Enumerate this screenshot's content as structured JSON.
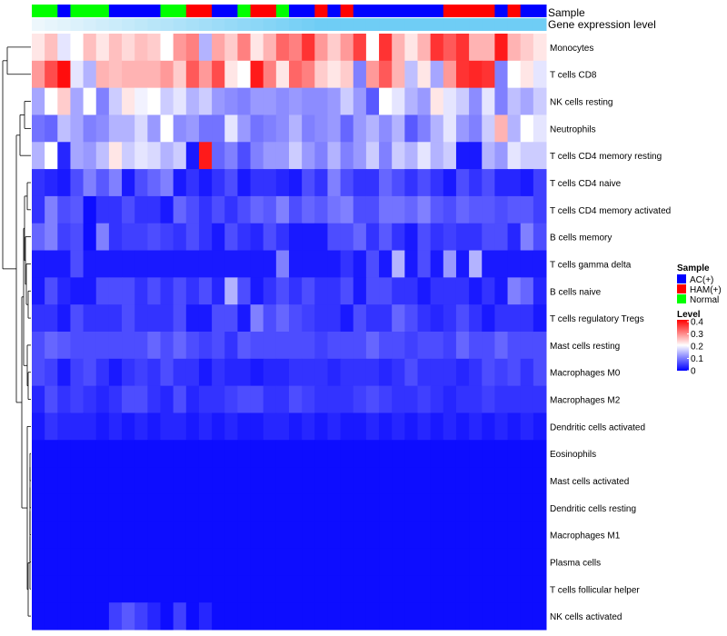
{
  "chart_data": {
    "type": "heatmap",
    "title": "",
    "annotation_labels": {
      "sample": "Sample",
      "expression": "Gene expression level"
    },
    "rows": [
      "Monocytes",
      "T cells CD8",
      "NK cells resting",
      "Neutrophils",
      "T cells CD4 memory resting",
      "T cells CD4 naive",
      "T cells CD4 memory activated",
      "B cells memory",
      "T cells gamma delta",
      "B cells naive",
      "T cells regulatory  Tregs",
      "Mast cells resting",
      "Macrophages M0",
      "Macrophages M2",
      "Dendritic cells activated",
      "Eosinophils",
      "Mast cells activated",
      "Dendritic cells resting",
      "Macrophages M1",
      "Plasma cells",
      "T cells follicular helper",
      "NK cells activated"
    ],
    "sample_groups": [
      "Normal",
      "Normal",
      "AC(+)",
      "Normal",
      "Normal",
      "Normal",
      "AC(+)",
      "AC(+)",
      "AC(+)",
      "AC(+)",
      "Normal",
      "Normal",
      "HAM(+)",
      "HAM(+)",
      "AC(+)",
      "AC(+)",
      "Normal",
      "HAM(+)",
      "HAM(+)",
      "Normal",
      "AC(+)",
      "AC(+)",
      "HAM(+)",
      "AC(+)",
      "HAM(+)",
      "AC(+)",
      "AC(+)",
      "AC(+)",
      "AC(+)",
      "AC(+)",
      "AC(+)",
      "AC(+)",
      "HAM(+)",
      "HAM(+)",
      "HAM(+)",
      "HAM(+)",
      "AC(+)",
      "HAM(+)",
      "AC(+)",
      "AC(+)"
    ],
    "values": [
      [
        0.22,
        0.25,
        0.18,
        0.2,
        0.25,
        0.22,
        0.25,
        0.23,
        0.25,
        0.24,
        0.2,
        0.28,
        0.3,
        0.14,
        0.27,
        0.24,
        0.3,
        0.22,
        0.26,
        0.32,
        0.3,
        0.36,
        0.28,
        0.24,
        0.28,
        0.35,
        0.2,
        0.36,
        0.26,
        0.22,
        0.26,
        0.36,
        0.33,
        0.36,
        0.26,
        0.26,
        0.38,
        0.26,
        0.24,
        0.22
      ],
      [
        0.28,
        0.34,
        0.39,
        0.18,
        0.14,
        0.26,
        0.25,
        0.26,
        0.26,
        0.26,
        0.28,
        0.24,
        0.33,
        0.28,
        0.34,
        0.22,
        0.2,
        0.38,
        0.3,
        0.22,
        0.32,
        0.3,
        0.24,
        0.22,
        0.24,
        0.1,
        0.28,
        0.33,
        0.26,
        0.15,
        0.22,
        0.13,
        0.28,
        0.36,
        0.37,
        0.36,
        0.1,
        0.2,
        0.22,
        0.18
      ],
      [
        0.13,
        0.2,
        0.24,
        0.13,
        0.2,
        0.1,
        0.16,
        0.22,
        0.19,
        0.2,
        0.16,
        0.18,
        0.14,
        0.16,
        0.12,
        0.11,
        0.1,
        0.12,
        0.12,
        0.11,
        0.12,
        0.11,
        0.11,
        0.12,
        0.16,
        0.12,
        0.07,
        0.2,
        0.18,
        0.14,
        0.12,
        0.22,
        0.18,
        0.16,
        0.11,
        0.18,
        0.1,
        0.15,
        0.13,
        0.16
      ],
      [
        0.09,
        0.08,
        0.15,
        0.13,
        0.1,
        0.11,
        0.14,
        0.14,
        0.17,
        0.12,
        0.2,
        0.11,
        0.12,
        0.09,
        0.09,
        0.18,
        0.12,
        0.09,
        0.1,
        0.11,
        0.14,
        0.1,
        0.11,
        0.12,
        0.08,
        0.12,
        0.14,
        0.11,
        0.14,
        0.07,
        0.1,
        0.14,
        0.18,
        0.12,
        0.1,
        0.16,
        0.26,
        0.14,
        0.2,
        0.18
      ],
      [
        0.14,
        0.2,
        0.03,
        0.13,
        0.12,
        0.15,
        0.22,
        0.16,
        0.18,
        0.17,
        0.14,
        0.16,
        0.02,
        0.38,
        0.08,
        0.1,
        0.06,
        0.1,
        0.12,
        0.12,
        0.16,
        0.12,
        0.1,
        0.14,
        0.1,
        0.12,
        0.16,
        0.1,
        0.16,
        0.14,
        0.18,
        0.14,
        0.16,
        0.02,
        0.02,
        0.14,
        0.12,
        0.18,
        0.16,
        0.16
      ],
      [
        0.04,
        0.03,
        0.02,
        0.06,
        0.1,
        0.07,
        0.1,
        0.02,
        0.06,
        0.08,
        0.1,
        0.02,
        0.04,
        0.02,
        0.04,
        0.06,
        0.02,
        0.04,
        0.04,
        0.03,
        0.02,
        0.06,
        0.04,
        0.1,
        0.06,
        0.04,
        0.04,
        0.08,
        0.06,
        0.04,
        0.06,
        0.04,
        0.02,
        0.06,
        0.04,
        0.06,
        0.03,
        0.03,
        0.02,
        0.05
      ],
      [
        0.04,
        0.1,
        0.06,
        0.07,
        0.01,
        0.04,
        0.04,
        0.06,
        0.04,
        0.04,
        0.02,
        0.08,
        0.06,
        0.04,
        0.06,
        0.04,
        0.06,
        0.08,
        0.07,
        0.1,
        0.06,
        0.08,
        0.07,
        0.09,
        0.1,
        0.06,
        0.06,
        0.09,
        0.09,
        0.08,
        0.1,
        0.07,
        0.06,
        0.08,
        0.07,
        0.07,
        0.06,
        0.07,
        0.07,
        0.05
      ],
      [
        0.08,
        0.1,
        0.05,
        0.06,
        0.01,
        0.1,
        0.04,
        0.05,
        0.05,
        0.06,
        0.05,
        0.04,
        0.06,
        0.04,
        0.02,
        0.06,
        0.04,
        0.03,
        0.06,
        0.04,
        0.02,
        0.02,
        0.02,
        0.06,
        0.06,
        0.08,
        0.04,
        0.07,
        0.04,
        0.02,
        0.06,
        0.04,
        0.05,
        0.04,
        0.04,
        0.06,
        0.06,
        0.03,
        0.1,
        0.06
      ],
      [
        0.02,
        0.02,
        0.02,
        0.06,
        0.02,
        0.02,
        0.02,
        0.02,
        0.02,
        0.02,
        0.02,
        0.02,
        0.02,
        0.02,
        0.02,
        0.02,
        0.02,
        0.02,
        0.02,
        0.1,
        0.02,
        0.02,
        0.02,
        0.02,
        0.04,
        0.02,
        0.06,
        0.02,
        0.14,
        0.02,
        0.06,
        0.02,
        0.12,
        0.02,
        0.14,
        0.02,
        0.02,
        0.02,
        0.02,
        0.02
      ],
      [
        0.02,
        0.06,
        0.03,
        0.02,
        0.02,
        0.06,
        0.06,
        0.06,
        0.04,
        0.06,
        0.04,
        0.06,
        0.04,
        0.06,
        0.03,
        0.14,
        0.06,
        0.02,
        0.04,
        0.06,
        0.04,
        0.06,
        0.04,
        0.04,
        0.06,
        0.02,
        0.06,
        0.06,
        0.04,
        0.04,
        0.02,
        0.04,
        0.04,
        0.04,
        0.02,
        0.04,
        0.02,
        0.1,
        0.08,
        0.03
      ],
      [
        0.04,
        0.04,
        0.02,
        0.06,
        0.04,
        0.04,
        0.04,
        0.06,
        0.04,
        0.04,
        0.04,
        0.06,
        0.02,
        0.02,
        0.06,
        0.06,
        0.02,
        0.1,
        0.06,
        0.08,
        0.06,
        0.05,
        0.04,
        0.04,
        0.02,
        0.06,
        0.04,
        0.04,
        0.08,
        0.06,
        0.04,
        0.03,
        0.04,
        0.06,
        0.04,
        0.02,
        0.04,
        0.04,
        0.04,
        0.02
      ],
      [
        0.06,
        0.08,
        0.07,
        0.06,
        0.06,
        0.06,
        0.06,
        0.06,
        0.06,
        0.08,
        0.06,
        0.08,
        0.06,
        0.05,
        0.06,
        0.04,
        0.07,
        0.06,
        0.06,
        0.06,
        0.06,
        0.06,
        0.05,
        0.06,
        0.06,
        0.06,
        0.08,
        0.06,
        0.06,
        0.05,
        0.06,
        0.06,
        0.05,
        0.08,
        0.06,
        0.06,
        0.08,
        0.06,
        0.06,
        0.06
      ],
      [
        0.06,
        0.05,
        0.02,
        0.05,
        0.06,
        0.04,
        0.02,
        0.04,
        0.05,
        0.04,
        0.06,
        0.04,
        0.04,
        0.02,
        0.04,
        0.03,
        0.03,
        0.02,
        0.03,
        0.03,
        0.04,
        0.04,
        0.04,
        0.03,
        0.04,
        0.04,
        0.04,
        0.03,
        0.04,
        0.06,
        0.04,
        0.04,
        0.04,
        0.03,
        0.04,
        0.06,
        0.05,
        0.06,
        0.04,
        0.06
      ],
      [
        0.03,
        0.06,
        0.04,
        0.05,
        0.04,
        0.03,
        0.04,
        0.06,
        0.06,
        0.04,
        0.03,
        0.06,
        0.03,
        0.04,
        0.04,
        0.05,
        0.06,
        0.06,
        0.04,
        0.04,
        0.06,
        0.05,
        0.04,
        0.04,
        0.04,
        0.05,
        0.06,
        0.05,
        0.04,
        0.04,
        0.05,
        0.04,
        0.03,
        0.04,
        0.04,
        0.05,
        0.04,
        0.04,
        0.04,
        0.04
      ],
      [
        0.02,
        0.04,
        0.03,
        0.03,
        0.03,
        0.02,
        0.03,
        0.02,
        0.03,
        0.02,
        0.03,
        0.03,
        0.02,
        0.03,
        0.02,
        0.03,
        0.02,
        0.02,
        0.03,
        0.03,
        0.02,
        0.03,
        0.02,
        0.03,
        0.02,
        0.02,
        0.03,
        0.02,
        0.03,
        0.02,
        0.03,
        0.02,
        0.03,
        0.02,
        0.03,
        0.02,
        0.03,
        0.02,
        0.03,
        0.02
      ],
      [
        0.01,
        0.01,
        0.01,
        0.01,
        0.01,
        0.01,
        0.01,
        0.01,
        0.01,
        0.01,
        0.01,
        0.01,
        0.01,
        0.01,
        0.01,
        0.01,
        0.01,
        0.01,
        0.01,
        0.01,
        0.01,
        0.01,
        0.01,
        0.01,
        0.01,
        0.01,
        0.01,
        0.01,
        0.01,
        0.01,
        0.01,
        0.01,
        0.01,
        0.01,
        0.01,
        0.01,
        0.01,
        0.01,
        0.01,
        0.01
      ],
      [
        0.01,
        0.01,
        0.01,
        0.01,
        0.01,
        0.01,
        0.01,
        0.01,
        0.01,
        0.01,
        0.01,
        0.01,
        0.01,
        0.01,
        0.01,
        0.01,
        0.01,
        0.01,
        0.01,
        0.01,
        0.01,
        0.01,
        0.01,
        0.01,
        0.01,
        0.01,
        0.01,
        0.01,
        0.01,
        0.01,
        0.01,
        0.01,
        0.01,
        0.01,
        0.01,
        0.01,
        0.01,
        0.01,
        0.01,
        0.01
      ],
      [
        0.01,
        0.01,
        0.01,
        0.01,
        0.01,
        0.01,
        0.01,
        0.01,
        0.01,
        0.01,
        0.01,
        0.01,
        0.01,
        0.01,
        0.01,
        0.01,
        0.01,
        0.01,
        0.01,
        0.01,
        0.01,
        0.01,
        0.01,
        0.01,
        0.01,
        0.01,
        0.01,
        0.01,
        0.01,
        0.01,
        0.01,
        0.01,
        0.01,
        0.01,
        0.01,
        0.01,
        0.01,
        0.01,
        0.01,
        0.01
      ],
      [
        0.01,
        0.01,
        0.01,
        0.01,
        0.01,
        0.01,
        0.01,
        0.01,
        0.01,
        0.01,
        0.01,
        0.01,
        0.01,
        0.01,
        0.01,
        0.01,
        0.01,
        0.01,
        0.01,
        0.01,
        0.01,
        0.01,
        0.01,
        0.01,
        0.01,
        0.01,
        0.01,
        0.01,
        0.01,
        0.01,
        0.01,
        0.01,
        0.01,
        0.01,
        0.01,
        0.01,
        0.01,
        0.01,
        0.01,
        0.01
      ],
      [
        0.01,
        0.01,
        0.01,
        0.01,
        0.01,
        0.01,
        0.01,
        0.01,
        0.01,
        0.01,
        0.01,
        0.01,
        0.01,
        0.01,
        0.01,
        0.01,
        0.01,
        0.01,
        0.01,
        0.01,
        0.01,
        0.01,
        0.01,
        0.01,
        0.01,
        0.01,
        0.01,
        0.01,
        0.01,
        0.01,
        0.01,
        0.01,
        0.01,
        0.01,
        0.01,
        0.01,
        0.01,
        0.01,
        0.01,
        0.01
      ],
      [
        0.01,
        0.01,
        0.01,
        0.01,
        0.01,
        0.01,
        0.01,
        0.01,
        0.01,
        0.01,
        0.01,
        0.01,
        0.01,
        0.01,
        0.01,
        0.01,
        0.01,
        0.01,
        0.01,
        0.01,
        0.01,
        0.01,
        0.01,
        0.01,
        0.01,
        0.01,
        0.01,
        0.01,
        0.01,
        0.01,
        0.01,
        0.01,
        0.01,
        0.01,
        0.01,
        0.01,
        0.01,
        0.01,
        0.01,
        0.01
      ],
      [
        0.01,
        0.01,
        0.01,
        0.01,
        0.01,
        0.01,
        0.05,
        0.07,
        0.05,
        0.03,
        0.01,
        0.05,
        0.01,
        0.03,
        0.01,
        0.01,
        0.01,
        0.01,
        0.01,
        0.01,
        0.01,
        0.01,
        0.01,
        0.01,
        0.01,
        0.01,
        0.01,
        0.01,
        0.01,
        0.01,
        0.01,
        0.01,
        0.01,
        0.01,
        0.01,
        0.01,
        0.01,
        0.01,
        0.01,
        0.01
      ]
    ],
    "color_scale": {
      "range": [
        0,
        0.4
      ],
      "low": "#0000ff",
      "mid": "#ffffff",
      "high": "#ff0000",
      "mid_value": 0.2
    },
    "legend": {
      "sample_title": "Sample",
      "sample_items": [
        {
          "label": "AC(+)",
          "color": "#0000ff"
        },
        {
          "label": "HAM(+)",
          "color": "#ff0000"
        },
        {
          "label": "Normal",
          "color": "#00ff00"
        }
      ],
      "level_title": "Level",
      "level_ticks": [
        "0.4",
        "0.3",
        "0.2",
        "0.1",
        "0"
      ],
      "placement": "right"
    },
    "expression_bar_colors": [
      "#edf7fc",
      "#6fcdf5"
    ],
    "dendrogram": "row clustering tree on the left"
  }
}
